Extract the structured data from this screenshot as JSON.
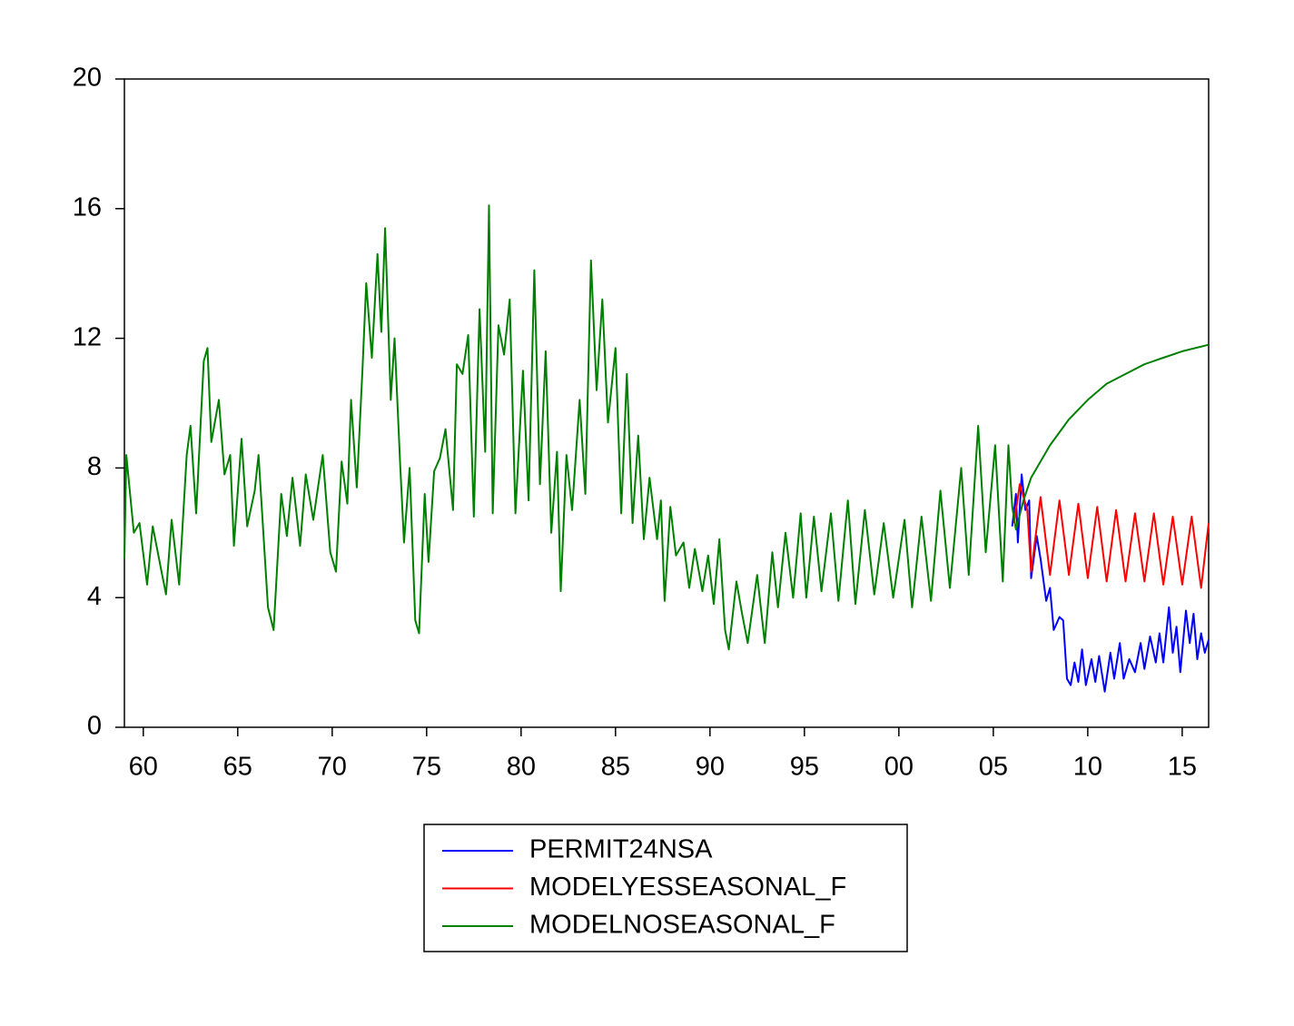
{
  "chart_data": {
    "type": "line",
    "xlim": [
      1959,
      2016.4
    ],
    "ylim": [
      0,
      20
    ],
    "yticks": [
      0,
      4,
      8,
      12,
      16,
      20
    ],
    "xticks": [
      {
        "value": 1960,
        "label": "60"
      },
      {
        "value": 1965,
        "label": "65"
      },
      {
        "value": 1970,
        "label": "70"
      },
      {
        "value": 1975,
        "label": "75"
      },
      {
        "value": 1980,
        "label": "80"
      },
      {
        "value": 1985,
        "label": "85"
      },
      {
        "value": 1990,
        "label": "90"
      },
      {
        "value": 1995,
        "label": "95"
      },
      {
        "value": 2000,
        "label": "00"
      },
      {
        "value": 2005,
        "label": "05"
      },
      {
        "value": 2010,
        "label": "10"
      },
      {
        "value": 2015,
        "label": "15"
      }
    ],
    "grid": false,
    "series": [
      {
        "name": "PERMIT24NSA",
        "color": "#0000ff",
        "x": [
          2006.0,
          2006.2,
          2006.3,
          2006.5,
          2006.7,
          2006.9,
          2007.0,
          2007.3,
          2007.5,
          2007.8,
          2008.0,
          2008.2,
          2008.5,
          2008.7,
          2008.9,
          2009.1,
          2009.3,
          2009.5,
          2009.7,
          2009.9,
          2010.2,
          2010.4,
          2010.6,
          2010.9,
          2011.2,
          2011.4,
          2011.7,
          2011.9,
          2012.2,
          2012.5,
          2012.8,
          2013.0,
          2013.3,
          2013.6,
          2013.8,
          2014.0,
          2014.3,
          2014.5,
          2014.7,
          2014.9,
          2015.2,
          2015.4,
          2015.6,
          2015.8,
          2016.0,
          2016.2,
          2016.4
        ],
        "values": [
          6.2,
          7.2,
          5.7,
          7.8,
          6.7,
          7.0,
          4.6,
          5.9,
          5.2,
          3.9,
          4.3,
          3.0,
          3.4,
          3.3,
          1.5,
          1.3,
          2.0,
          1.4,
          2.4,
          1.3,
          2.1,
          1.4,
          2.2,
          1.1,
          2.3,
          1.5,
          2.6,
          1.5,
          2.1,
          1.7,
          2.6,
          1.8,
          2.8,
          2.0,
          2.9,
          2.0,
          3.7,
          2.3,
          3.1,
          1.7,
          3.6,
          2.6,
          3.5,
          2.1,
          2.9,
          2.3,
          2.7
        ]
      },
      {
        "name": "MODELYESSEASONAL_F",
        "color": "#ff0000",
        "x": [
          2006.1,
          2006.4,
          2006.8,
          2007.0,
          2007.5,
          2008.0,
          2008.5,
          2009.0,
          2009.5,
          2010.0,
          2010.5,
          2011.0,
          2011.5,
          2012.0,
          2012.5,
          2013.0,
          2013.5,
          2014.0,
          2014.5,
          2015.0,
          2015.5,
          2016.0,
          2016.4
        ],
        "values": [
          6.3,
          7.5,
          6.7,
          4.8,
          7.1,
          4.7,
          7.0,
          4.7,
          6.9,
          4.6,
          6.8,
          4.5,
          6.7,
          4.5,
          6.6,
          4.5,
          6.6,
          4.4,
          6.5,
          4.4,
          6.5,
          4.3,
          6.3
        ]
      },
      {
        "name": "MODELNOSEASONAL_F",
        "color": "#008000",
        "x": [
          1959.0,
          1959.1,
          1959.5,
          1959.8,
          1960.2,
          1960.5,
          1960.9,
          1961.2,
          1961.5,
          1961.9,
          1962.3,
          1962.5,
          1962.8,
          1963.2,
          1963.4,
          1963.6,
          1964.0,
          1964.3,
          1964.6,
          1964.8,
          1965.2,
          1965.5,
          1965.9,
          1966.1,
          1966.6,
          1966.9,
          1967.3,
          1967.6,
          1967.9,
          1968.3,
          1968.6,
          1969.0,
          1969.5,
          1969.9,
          1970.2,
          1970.5,
          1970.8,
          1971.0,
          1971.3,
          1971.6,
          1971.8,
          1972.1,
          1972.4,
          1972.6,
          1972.8,
          1973.1,
          1973.3,
          1973.6,
          1973.8,
          1974.1,
          1974.4,
          1974.6,
          1974.9,
          1975.1,
          1975.4,
          1975.7,
          1976.0,
          1976.4,
          1976.6,
          1976.9,
          1977.2,
          1977.5,
          1977.8,
          1978.1,
          1978.3,
          1978.5,
          1978.8,
          1979.1,
          1979.4,
          1979.7,
          1980.1,
          1980.4,
          1980.7,
          1981.0,
          1981.3,
          1981.6,
          1981.9,
          1982.1,
          1982.4,
          1982.7,
          1983.1,
          1983.4,
          1983.7,
          1984.0,
          1984.3,
          1984.6,
          1985.0,
          1985.3,
          1985.6,
          1985.9,
          1986.2,
          1986.5,
          1986.8,
          1987.2,
          1987.4,
          1987.6,
          1987.9,
          1988.2,
          1988.6,
          1988.9,
          1989.2,
          1989.6,
          1989.9,
          1990.2,
          1990.5,
          1990.8,
          1991.0,
          1991.4,
          1991.7,
          1992.0,
          1992.5,
          1992.9,
          1993.3,
          1993.6,
          1994.0,
          1994.4,
          1994.8,
          1995.1,
          1995.5,
          1995.9,
          1996.4,
          1996.8,
          1997.3,
          1997.7,
          1998.2,
          1998.7,
          1999.2,
          1999.7,
          2000.3,
          2000.7,
          2001.2,
          2001.7,
          2002.2,
          2002.7,
          2003.3,
          2003.7,
          2004.2,
          2004.6,
          2005.1,
          2005.5,
          2005.8,
          2006.0,
          2006.2,
          2006.6,
          2007.0,
          2008.0,
          2009.0,
          2010.0,
          2011.0,
          2012.0,
          2013.0,
          2014.0,
          2015.0,
          2016.4
        ],
        "values": [
          5.2,
          8.4,
          6.0,
          6.3,
          4.4,
          6.2,
          5.0,
          4.1,
          6.4,
          4.4,
          8.4,
          9.3,
          6.6,
          11.3,
          11.7,
          8.8,
          10.1,
          7.8,
          8.4,
          5.6,
          8.9,
          6.2,
          7.3,
          8.4,
          3.7,
          3.0,
          7.2,
          5.9,
          7.7,
          5.6,
          7.8,
          6.4,
          8.4,
          5.4,
          4.8,
          8.2,
          6.9,
          10.1,
          7.4,
          11.0,
          13.7,
          11.4,
          14.6,
          12.2,
          15.4,
          10.1,
          12.0,
          8.1,
          5.7,
          8.0,
          3.3,
          2.9,
          7.2,
          5.1,
          7.9,
          8.3,
          9.2,
          6.7,
          11.2,
          10.9,
          12.1,
          6.5,
          12.9,
          8.5,
          16.1,
          6.6,
          12.4,
          11.5,
          13.2,
          6.6,
          11.0,
          7.0,
          14.1,
          7.5,
          11.6,
          6.0,
          8.5,
          4.2,
          8.4,
          6.7,
          10.1,
          7.2,
          14.4,
          10.4,
          13.2,
          9.4,
          11.7,
          6.6,
          10.9,
          6.3,
          9.0,
          5.8,
          7.7,
          5.8,
          7.0,
          3.9,
          6.8,
          5.3,
          5.7,
          4.3,
          5.5,
          4.2,
          5.3,
          3.8,
          5.8,
          3.0,
          2.4,
          4.5,
          3.5,
          2.6,
          4.7,
          2.6,
          5.4,
          3.7,
          6.0,
          4.0,
          6.6,
          4.0,
          6.5,
          4.2,
          6.6,
          3.9,
          7.0,
          3.8,
          6.7,
          4.1,
          6.3,
          4.0,
          6.4,
          3.7,
          6.5,
          3.9,
          7.3,
          4.3,
          8.0,
          4.7,
          9.3,
          5.4,
          8.7,
          4.5,
          8.7,
          6.8,
          6.1,
          7.0,
          7.7,
          8.7,
          9.5,
          10.1,
          10.6,
          10.9,
          11.2,
          11.4,
          11.6,
          11.8
        ]
      }
    ]
  }
}
